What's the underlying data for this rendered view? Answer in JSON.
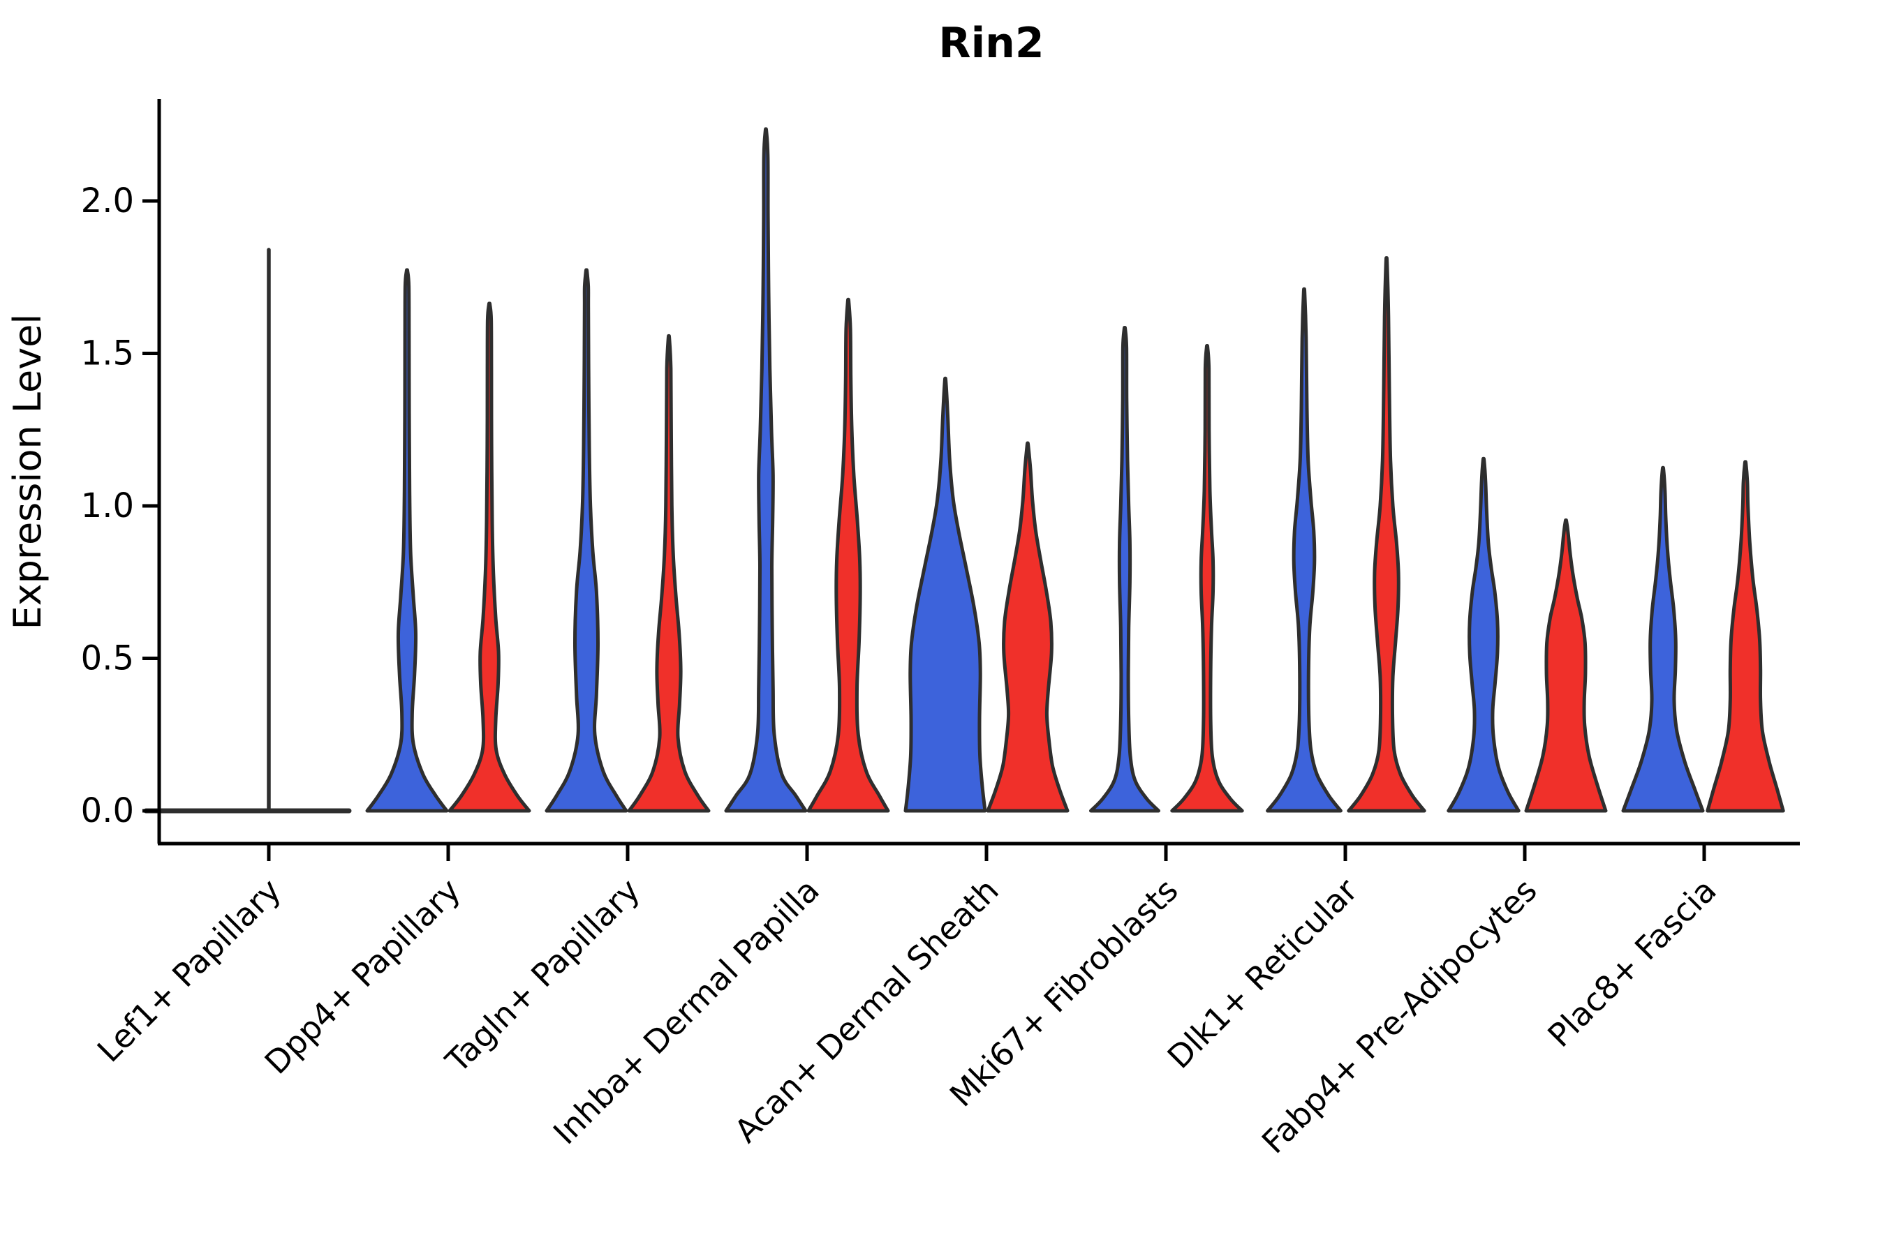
{
  "title": "Rin2",
  "axes": {
    "ylabel": "Expression Level",
    "ytick_labels": [
      "0.0",
      "0.5",
      "1.0",
      "1.5",
      "2.0"
    ],
    "yticks": [
      0.0,
      0.5,
      1.0,
      1.5,
      2.0
    ]
  },
  "colors": {
    "blue": "#3D63DB",
    "red": "#F0302A",
    "outline": "#2E2E2E",
    "axis": "#000000",
    "text": "#000000"
  },
  "chart_data": {
    "type": "violin",
    "title": "Rin2",
    "xlabel": "",
    "ylabel": "Expression Level",
    "ylim": [
      -0.11,
      2.33
    ],
    "yticks": [
      0.0,
      0.5,
      1.0,
      1.5,
      2.0
    ],
    "grid": false,
    "legend": "none",
    "series_names": [
      "blue",
      "red"
    ],
    "categories": [
      "Lef1+ Papillary",
      "Dpp4+ Papillary",
      "Tagln+ Papillary",
      "Inhba+ Dermal Papilla",
      "Acan+ Dermal Sheath",
      "Mki67+ Fibroblasts",
      "Dlk1+ Reticular",
      "Fabp4+ Pre-Adipocytes",
      "Plac8+ Fascia"
    ],
    "violins": [
      {
        "category": "Lef1+ Papillary",
        "blue": {
          "max": 1.84,
          "flat": true,
          "spike": 1.84,
          "profile": [
            [
              0,
              1.0
            ]
          ]
        },
        "red": {
          "max": 0.0,
          "flat": true,
          "profile": [
            [
              0,
              1.0
            ]
          ]
        }
      },
      {
        "category": "Dpp4+ Papillary",
        "blue": {
          "max": 1.77,
          "profile": [
            [
              0,
              1.0
            ],
            [
              0.05,
              0.72
            ],
            [
              0.12,
              0.4
            ],
            [
              0.22,
              0.16
            ],
            [
              0.32,
              0.13
            ],
            [
              0.45,
              0.19
            ],
            [
              0.58,
              0.22
            ],
            [
              0.7,
              0.16
            ],
            [
              0.85,
              0.09
            ],
            [
              1.05,
              0.065
            ],
            [
              1.3,
              0.055
            ],
            [
              1.55,
              0.05
            ],
            [
              1.72,
              0.045
            ],
            [
              1.77,
              0.012
            ]
          ]
        },
        "red": {
          "max": 1.66,
          "profile": [
            [
              0,
              1.0
            ],
            [
              0.05,
              0.7
            ],
            [
              0.12,
              0.38
            ],
            [
              0.2,
              0.17
            ],
            [
              0.3,
              0.16
            ],
            [
              0.42,
              0.22
            ],
            [
              0.52,
              0.23
            ],
            [
              0.63,
              0.16
            ],
            [
              0.78,
              0.1
            ],
            [
              0.95,
              0.07
            ],
            [
              1.2,
              0.055
            ],
            [
              1.45,
              0.05
            ],
            [
              1.61,
              0.045
            ],
            [
              1.66,
              0.012
            ]
          ]
        }
      },
      {
        "category": "Tagln+ Papillary",
        "blue": {
          "max": 1.77,
          "profile": [
            [
              0,
              1.0
            ],
            [
              0.05,
              0.75
            ],
            [
              0.13,
              0.42
            ],
            [
              0.25,
              0.21
            ],
            [
              0.38,
              0.25
            ],
            [
              0.55,
              0.29
            ],
            [
              0.72,
              0.25
            ],
            [
              0.85,
              0.16
            ],
            [
              1.0,
              0.1
            ],
            [
              1.2,
              0.07
            ],
            [
              1.45,
              0.055
            ],
            [
              1.65,
              0.048
            ],
            [
              1.72,
              0.045
            ],
            [
              1.77,
              0.012
            ]
          ]
        },
        "red": {
          "max": 1.55,
          "profile": [
            [
              0,
              1.0
            ],
            [
              0.05,
              0.73
            ],
            [
              0.13,
              0.4
            ],
            [
              0.24,
              0.23
            ],
            [
              0.35,
              0.27
            ],
            [
              0.46,
              0.3
            ],
            [
              0.58,
              0.26
            ],
            [
              0.7,
              0.18
            ],
            [
              0.84,
              0.11
            ],
            [
              1.0,
              0.075
            ],
            [
              1.25,
              0.06
            ],
            [
              1.45,
              0.05
            ],
            [
              1.55,
              0.012
            ]
          ]
        }
      },
      {
        "category": "Inhba+ Dermal Papilla",
        "blue": {
          "max": 2.23,
          "profile": [
            [
              0,
              1.0
            ],
            [
              0.05,
              0.75
            ],
            [
              0.12,
              0.4
            ],
            [
              0.25,
              0.21
            ],
            [
              0.4,
              0.18
            ],
            [
              0.6,
              0.16
            ],
            [
              0.8,
              0.15
            ],
            [
              0.95,
              0.17
            ],
            [
              1.1,
              0.18
            ],
            [
              1.25,
              0.14
            ],
            [
              1.45,
              0.1
            ],
            [
              1.7,
              0.07
            ],
            [
              1.95,
              0.055
            ],
            [
              2.15,
              0.05
            ],
            [
              2.23,
              0.012
            ]
          ]
        },
        "red": {
          "max": 1.67,
          "profile": [
            [
              0,
              1.0
            ],
            [
              0.05,
              0.78
            ],
            [
              0.13,
              0.45
            ],
            [
              0.25,
              0.25
            ],
            [
              0.4,
              0.22
            ],
            [
              0.55,
              0.27
            ],
            [
              0.7,
              0.3
            ],
            [
              0.82,
              0.29
            ],
            [
              0.95,
              0.23
            ],
            [
              1.1,
              0.14
            ],
            [
              1.25,
              0.09
            ],
            [
              1.42,
              0.065
            ],
            [
              1.58,
              0.055
            ],
            [
              1.67,
              0.012
            ]
          ]
        }
      },
      {
        "category": "Acan+ Dermal Sheath",
        "blue": {
          "max": 1.41,
          "profile": [
            [
              0,
              1.0
            ],
            [
              0.08,
              0.93
            ],
            [
              0.18,
              0.87
            ],
            [
              0.3,
              0.86
            ],
            [
              0.45,
              0.88
            ],
            [
              0.55,
              0.85
            ],
            [
              0.67,
              0.72
            ],
            [
              0.8,
              0.52
            ],
            [
              0.92,
              0.33
            ],
            [
              1.02,
              0.2
            ],
            [
              1.15,
              0.11
            ],
            [
              1.3,
              0.06
            ],
            [
              1.41,
              0.012
            ]
          ]
        },
        "red": {
          "max": 1.2,
          "profile": [
            [
              0,
              1.0
            ],
            [
              0.07,
              0.8
            ],
            [
              0.15,
              0.62
            ],
            [
              0.25,
              0.52
            ],
            [
              0.32,
              0.48
            ],
            [
              0.4,
              0.52
            ],
            [
              0.52,
              0.6
            ],
            [
              0.62,
              0.58
            ],
            [
              0.72,
              0.47
            ],
            [
              0.82,
              0.33
            ],
            [
              0.92,
              0.2
            ],
            [
              1.02,
              0.12
            ],
            [
              1.12,
              0.07
            ],
            [
              1.2,
              0.012
            ]
          ]
        }
      },
      {
        "category": "Mki67+ Fibroblasts",
        "blue": {
          "max": 1.58,
          "profile": [
            [
              0,
              0.85
            ],
            [
              0.04,
              0.55
            ],
            [
              0.1,
              0.26
            ],
            [
              0.18,
              0.14
            ],
            [
              0.3,
              0.1
            ],
            [
              0.45,
              0.09
            ],
            [
              0.6,
              0.1
            ],
            [
              0.75,
              0.13
            ],
            [
              0.88,
              0.13
            ],
            [
              1.0,
              0.1
            ],
            [
              1.15,
              0.07
            ],
            [
              1.35,
              0.05
            ],
            [
              1.52,
              0.045
            ],
            [
              1.58,
              0.012
            ]
          ]
        },
        "red": {
          "max": 1.52,
          "profile": [
            [
              0,
              0.88
            ],
            [
              0.04,
              0.58
            ],
            [
              0.1,
              0.28
            ],
            [
              0.18,
              0.13
            ],
            [
              0.3,
              0.09
            ],
            [
              0.45,
              0.09
            ],
            [
              0.6,
              0.11
            ],
            [
              0.72,
              0.15
            ],
            [
              0.82,
              0.15
            ],
            [
              0.92,
              0.11
            ],
            [
              1.05,
              0.07
            ],
            [
              1.25,
              0.05
            ],
            [
              1.45,
              0.045
            ],
            [
              1.52,
              0.012
            ]
          ]
        }
      },
      {
        "category": "Dlk1+ Reticular",
        "blue": {
          "max": 1.7,
          "profile": [
            [
              0,
              0.92
            ],
            [
              0.05,
              0.62
            ],
            [
              0.12,
              0.32
            ],
            [
              0.2,
              0.17
            ],
            [
              0.3,
              0.12
            ],
            [
              0.45,
              0.11
            ],
            [
              0.6,
              0.14
            ],
            [
              0.72,
              0.22
            ],
            [
              0.82,
              0.26
            ],
            [
              0.92,
              0.24
            ],
            [
              1.02,
              0.17
            ],
            [
              1.15,
              0.1
            ],
            [
              1.32,
              0.07
            ],
            [
              1.55,
              0.05
            ],
            [
              1.7,
              0.012
            ]
          ]
        },
        "red": {
          "max": 1.8,
          "profile": [
            [
              0,
              0.95
            ],
            [
              0.05,
              0.65
            ],
            [
              0.12,
              0.35
            ],
            [
              0.2,
              0.19
            ],
            [
              0.32,
              0.15
            ],
            [
              0.44,
              0.16
            ],
            [
              0.56,
              0.23
            ],
            [
              0.67,
              0.29
            ],
            [
              0.78,
              0.3
            ],
            [
              0.88,
              0.25
            ],
            [
              1.0,
              0.16
            ],
            [
              1.15,
              0.1
            ],
            [
              1.38,
              0.07
            ],
            [
              1.62,
              0.05
            ],
            [
              1.8,
              0.012
            ]
          ]
        }
      },
      {
        "category": "Fabp4+ Pre-Adipocytes",
        "blue": {
          "max": 1.15,
          "profile": [
            [
              0,
              0.88
            ],
            [
              0.06,
              0.62
            ],
            [
              0.14,
              0.38
            ],
            [
              0.24,
              0.25
            ],
            [
              0.33,
              0.23
            ],
            [
              0.42,
              0.29
            ],
            [
              0.52,
              0.35
            ],
            [
              0.62,
              0.35
            ],
            [
              0.72,
              0.28
            ],
            [
              0.8,
              0.19
            ],
            [
              0.88,
              0.12
            ],
            [
              0.99,
              0.075
            ],
            [
              1.08,
              0.05
            ],
            [
              1.15,
              0.012
            ]
          ]
        },
        "red": {
          "max": 0.95,
          "profile": [
            [
              0,
              1.0
            ],
            [
              0.08,
              0.8
            ],
            [
              0.18,
              0.58
            ],
            [
              0.28,
              0.47
            ],
            [
              0.36,
              0.46
            ],
            [
              0.45,
              0.49
            ],
            [
              0.55,
              0.48
            ],
            [
              0.63,
              0.4
            ],
            [
              0.7,
              0.28
            ],
            [
              0.78,
              0.17
            ],
            [
              0.85,
              0.1
            ],
            [
              0.91,
              0.055
            ],
            [
              0.95,
              0.012
            ]
          ]
        }
      },
      {
        "category": "Plac8+ Fascia",
        "blue": {
          "max": 1.12,
          "profile": [
            [
              0,
              1.0
            ],
            [
              0.07,
              0.8
            ],
            [
              0.16,
              0.55
            ],
            [
              0.26,
              0.35
            ],
            [
              0.36,
              0.28
            ],
            [
              0.46,
              0.31
            ],
            [
              0.56,
              0.32
            ],
            [
              0.66,
              0.27
            ],
            [
              0.76,
              0.18
            ],
            [
              0.86,
              0.11
            ],
            [
              0.96,
              0.07
            ],
            [
              1.05,
              0.05
            ],
            [
              1.12,
              0.012
            ]
          ]
        },
        "red": {
          "max": 1.14,
          "profile": [
            [
              0,
              0.95
            ],
            [
              0.07,
              0.8
            ],
            [
              0.16,
              0.6
            ],
            [
              0.26,
              0.43
            ],
            [
              0.36,
              0.38
            ],
            [
              0.46,
              0.38
            ],
            [
              0.56,
              0.36
            ],
            [
              0.66,
              0.29
            ],
            [
              0.76,
              0.19
            ],
            [
              0.88,
              0.11
            ],
            [
              1.0,
              0.065
            ],
            [
              1.08,
              0.05
            ],
            [
              1.14,
              0.012
            ]
          ]
        }
      }
    ]
  }
}
